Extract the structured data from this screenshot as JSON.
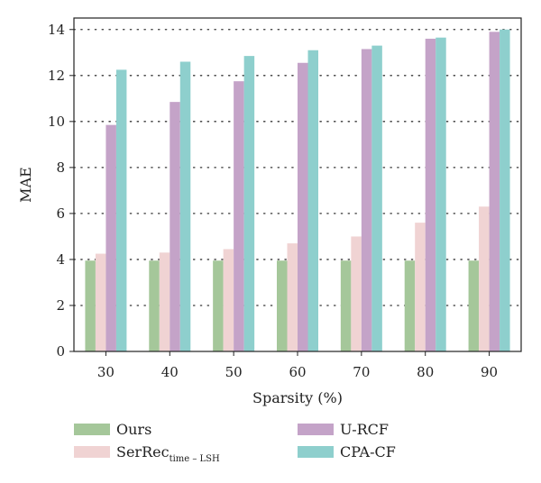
{
  "chart_data": {
    "type": "bar",
    "title": "",
    "xlabel": "Sparsity (%)",
    "ylabel": "MAE",
    "categories": [
      "30",
      "40",
      "50",
      "60",
      "70",
      "80",
      "90"
    ],
    "ylim": [
      0,
      14.5
    ],
    "yticks": [
      "0",
      "2",
      "4",
      "6",
      "8",
      "10",
      "12",
      "14"
    ],
    "grid": true,
    "legend_position": "bottom",
    "series": [
      {
        "name": "Ours",
        "color": "#a5c79a",
        "values": [
          3.95,
          3.95,
          3.95,
          3.95,
          3.95,
          3.95,
          3.95
        ]
      },
      {
        "name": "SerRec",
        "name_subscript": "time – LSH",
        "color": "#f0d3d3",
        "values": [
          4.25,
          4.3,
          4.45,
          4.7,
          5.0,
          5.6,
          6.3
        ]
      },
      {
        "name": "U-RCF",
        "color": "#c4a3c8",
        "values": [
          9.85,
          10.85,
          11.75,
          12.55,
          13.15,
          13.6,
          13.9
        ]
      },
      {
        "name": "CPA-CF",
        "color": "#8ecfcd",
        "values": [
          12.25,
          12.6,
          12.85,
          13.1,
          13.3,
          13.65,
          14.0
        ]
      }
    ]
  }
}
